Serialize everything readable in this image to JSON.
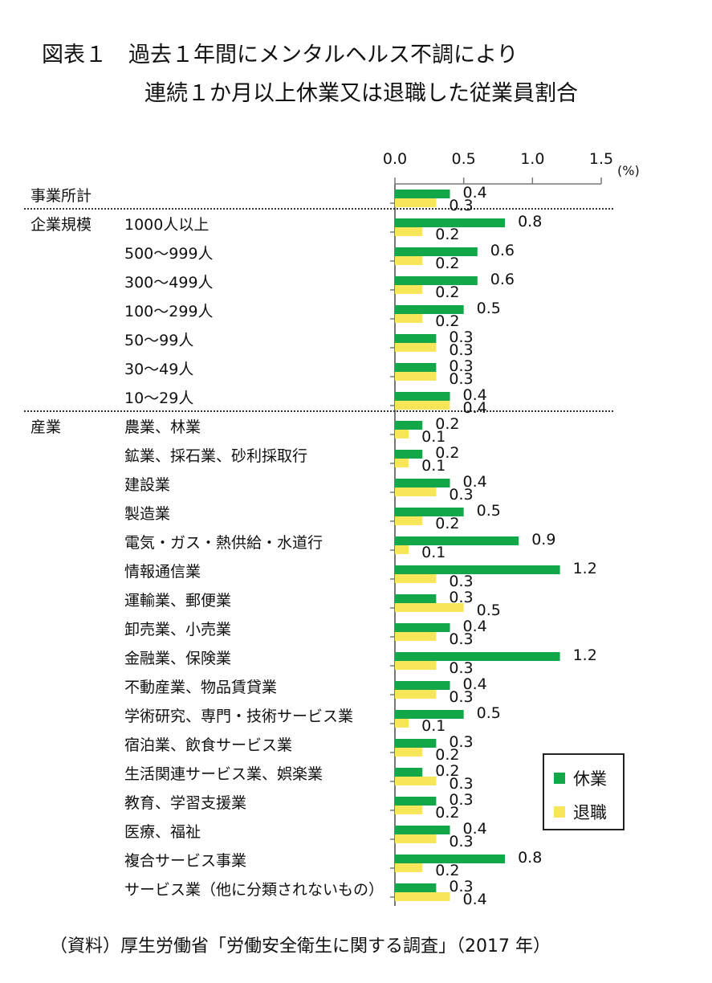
{
  "title": {
    "line1": "図表１　過去１年間にメンタルヘルス不調により",
    "line2": "連続１か月以上休業又は退職した従業員割合"
  },
  "source": "（資料）厚生労働省「労働安全衛生に関する調査」（2017 年）",
  "colors": {
    "休業": "#12a84a",
    "退職": "#f7e55a"
  },
  "chart_data": {
    "type": "bar",
    "orientation": "horizontal",
    "unit": "(%)",
    "xlim": [
      0,
      1.5
    ],
    "ticks": [
      "0.0",
      "0.5",
      "1.0",
      "1.5"
    ],
    "groups": [
      {
        "label": "事業所計",
        "categories": [
          "事業所計"
        ]
      },
      {
        "label": "企業規模",
        "categories": [
          "1000人以上",
          "500～999人",
          "300～499人",
          "100～299人",
          "50～99人",
          "30～49人",
          "10～29人"
        ]
      },
      {
        "label": "産業",
        "categories": [
          "農業、林業",
          "鉱業、採石業、砂利採取行",
          "建設業",
          "製造業",
          "電気・ガス・熱供給・水道行",
          "情報通信業",
          "運輸業、郵便業",
          "卸売業、小売業",
          "金融業、保険業",
          "不動産業、物品賃貸業",
          "学術研究、専門・技術サービス業",
          "宿泊業、飲食サービス業",
          "生活関連サービス業、娯楽業",
          "教育、学習支援業",
          "医療、福祉",
          "複合サービス事業",
          "サービス業（他に分類されないもの）"
        ]
      }
    ],
    "series": [
      {
        "name": "休業",
        "values": [
          0.4,
          0.8,
          0.6,
          0.6,
          0.5,
          0.3,
          0.3,
          0.4,
          0.2,
          0.2,
          0.4,
          0.5,
          0.9,
          1.2,
          0.3,
          0.4,
          1.2,
          0.4,
          0.5,
          0.3,
          0.2,
          0.3,
          0.4,
          0.8,
          0.3
        ]
      },
      {
        "name": "退職",
        "values": [
          0.3,
          0.2,
          0.2,
          0.2,
          0.2,
          0.3,
          0.3,
          0.4,
          0.1,
          0.1,
          0.3,
          0.2,
          0.1,
          0.3,
          0.5,
          0.3,
          0.3,
          0.3,
          0.1,
          0.2,
          0.3,
          0.2,
          0.3,
          0.2,
          0.4
        ]
      }
    ],
    "legend": "right"
  }
}
